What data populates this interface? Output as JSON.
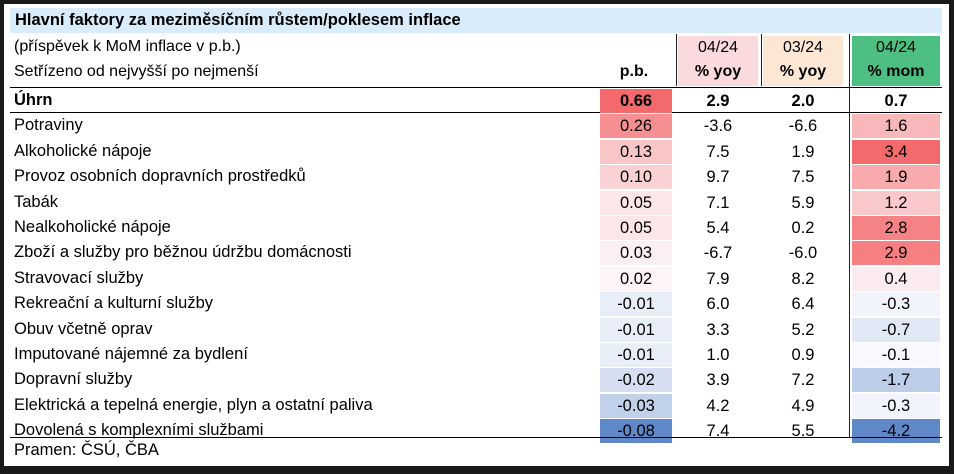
{
  "title": "Hlavní faktory za meziměsíčním růstem/poklesem inflace",
  "subtitle1": "(příspěvek k MoM inflace v p.b.)",
  "subtitle2": "Setřízeno od nejvyšší po nejmenší",
  "columns": {
    "pb": "p.b.",
    "c1_top": "04/24",
    "c1_bottom": "% yoy",
    "c2_top": "03/24",
    "c2_bottom": "% yoy",
    "c3_top": "04/24",
    "c3_bottom": "% mom"
  },
  "colors": {
    "header_c1": "#fadadd",
    "header_c2": "#fce6d4",
    "header_c3": "#4dbf82",
    "title_bg": "#d9ecfb",
    "positive_max": "#f4696b",
    "negative_max": "#5f88c8"
  },
  "chart_data": {
    "type": "table",
    "total": {
      "label": "Úhrn",
      "pb": "0.66",
      "yoy_0424": "2.9",
      "yoy_0324": "2.0",
      "mom_0424": "0.7"
    },
    "rows": [
      {
        "label": "Potraviny",
        "pb": "0.26",
        "yoy_0424": "-3.6",
        "yoy_0324": "-6.6",
        "mom_0424": "1.6"
      },
      {
        "label": "Alkoholické nápoje",
        "pb": "0.13",
        "yoy_0424": "7.5",
        "yoy_0324": "1.9",
        "mom_0424": "3.4"
      },
      {
        "label": "Provoz osobních dopravních prostředků",
        "pb": "0.10",
        "yoy_0424": "9.7",
        "yoy_0324": "7.5",
        "mom_0424": "1.9"
      },
      {
        "label": "Tabák",
        "pb": "0.05",
        "yoy_0424": "7.1",
        "yoy_0324": "5.9",
        "mom_0424": "1.2"
      },
      {
        "label": "Nealkoholické nápoje",
        "pb": "0.05",
        "yoy_0424": "5.4",
        "yoy_0324": "0.2",
        "mom_0424": "2.8"
      },
      {
        "label": "Zboží a služby pro běžnou údržbu domácnosti",
        "pb": "0.03",
        "yoy_0424": "-6.7",
        "yoy_0324": "-6.0",
        "mom_0424": "2.9"
      },
      {
        "label": "Stravovací služby",
        "pb": "0.02",
        "yoy_0424": "7.9",
        "yoy_0324": "8.2",
        "mom_0424": "0.4"
      },
      {
        "label": "Rekreační a kulturní služby",
        "pb": "-0.01",
        "yoy_0424": "6.0",
        "yoy_0324": "6.4",
        "mom_0424": "-0.3"
      },
      {
        "label": "Obuv včetně oprav",
        "pb": "-0.01",
        "yoy_0424": "3.3",
        "yoy_0324": "5.2",
        "mom_0424": "-0.7"
      },
      {
        "label": "Imputované nájemné za bydlení",
        "pb": "-0.01",
        "yoy_0424": "1.0",
        "yoy_0324": "0.9",
        "mom_0424": "-0.1"
      },
      {
        "label": "Dopravní služby",
        "pb": "-0.02",
        "yoy_0424": "3.9",
        "yoy_0324": "7.2",
        "mom_0424": "-1.7"
      },
      {
        "label": "Elektrická a tepelná energie, plyn a ostatní paliva",
        "pb": "-0.03",
        "yoy_0424": "4.2",
        "yoy_0324": "4.9",
        "mom_0424": "-0.3"
      },
      {
        "label": "Dovolená s komplexními službami",
        "pb": "-0.08",
        "yoy_0424": "7.4",
        "yoy_0324": "5.5",
        "mom_0424": "-4.2"
      }
    ]
  },
  "source": "Pramen: ČSÚ, ČBA"
}
